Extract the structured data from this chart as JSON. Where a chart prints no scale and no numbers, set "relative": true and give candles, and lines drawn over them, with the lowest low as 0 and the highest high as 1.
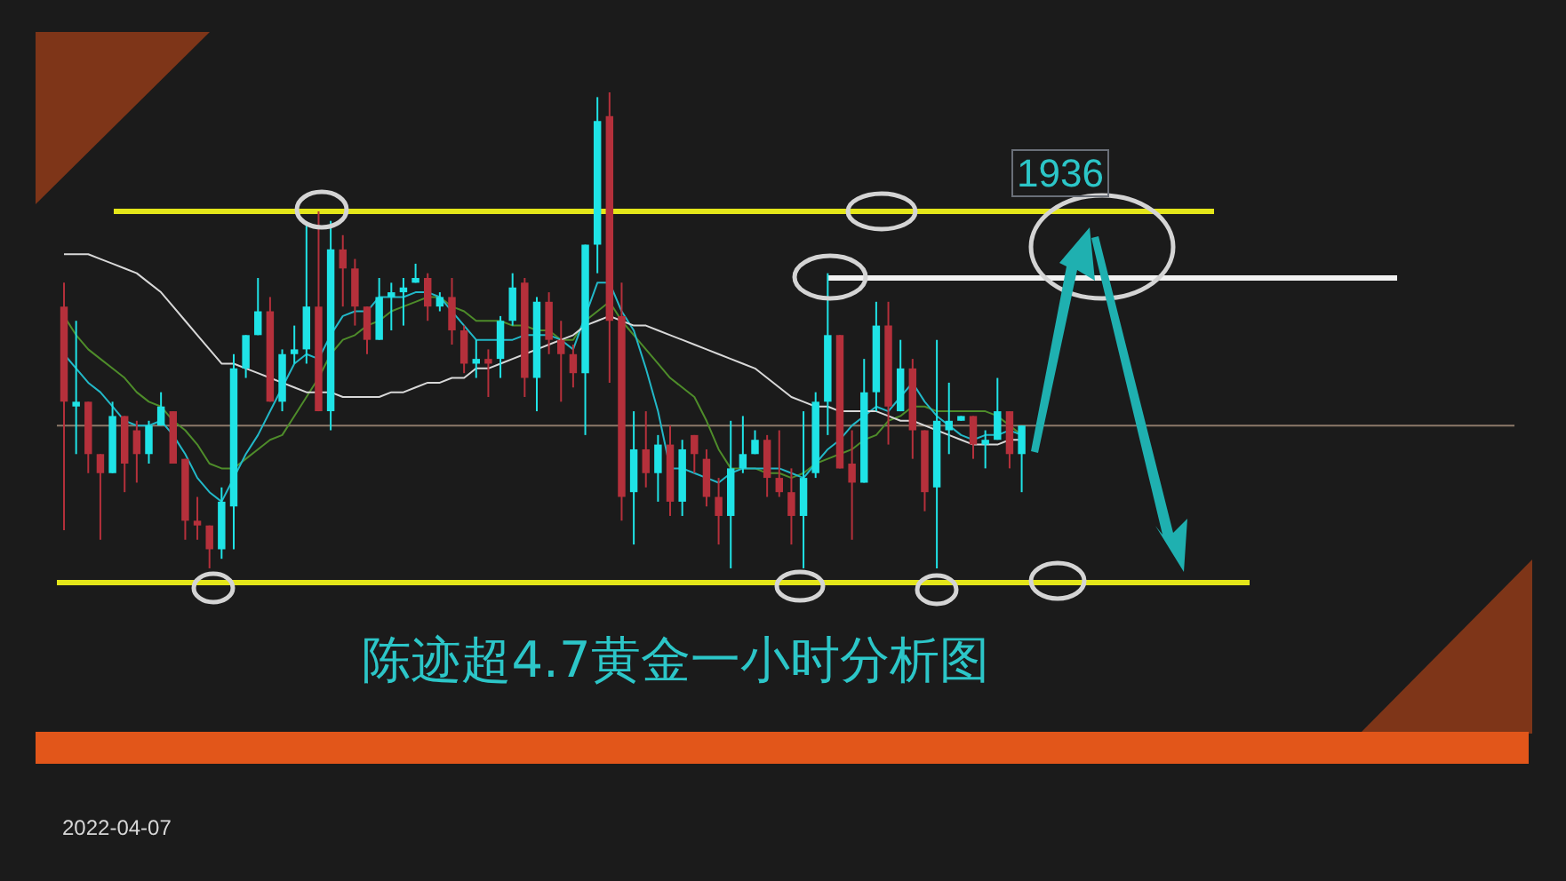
{
  "chart_data": {
    "type": "candlestick",
    "relative": true,
    "title": "陈迹超4.7黄金一小时分析图",
    "annotations": [
      "1936",
      "2022-04-07"
    ],
    "marker": "none",
    "categories": [
      null,
      null,
      null,
      null,
      null,
      null,
      null,
      null,
      null,
      null,
      null,
      null,
      null,
      null,
      null,
      null,
      null,
      null,
      null,
      null,
      null,
      null,
      null,
      null,
      null,
      null,
      null,
      null,
      null,
      null,
      null,
      null,
      null,
      null,
      null,
      null,
      null,
      null,
      null,
      null,
      null,
      null,
      null,
      null,
      null,
      null,
      null,
      null,
      null,
      null,
      null,
      null,
      null,
      null,
      null,
      null,
      null,
      null,
      null,
      null,
      null,
      null,
      null,
      null,
      null,
      null,
      null,
      null,
      null,
      null,
      null,
      null,
      null,
      null,
      null,
      null,
      null,
      null,
      null,
      null
    ],
    "ohlc": [
      [
        0.55,
        0.6,
        0.08,
        0.35
      ],
      [
        0.34,
        0.52,
        0.24,
        0.35
      ],
      [
        0.35,
        0.35,
        0.2,
        0.24
      ],
      [
        0.24,
        0.24,
        0.06,
        0.2
      ],
      [
        0.2,
        0.35,
        0.2,
        0.32
      ],
      [
        0.32,
        0.32,
        0.16,
        0.22
      ],
      [
        0.29,
        0.31,
        0.18,
        0.24
      ],
      [
        0.24,
        0.31,
        0.22,
        0.3
      ],
      [
        0.3,
        0.37,
        0.3,
        0.34
      ],
      [
        0.33,
        0.33,
        0.22,
        0.22
      ],
      [
        0.23,
        0.23,
        0.06,
        0.1
      ],
      [
        0.1,
        0.15,
        0.06,
        0.09
      ],
      [
        0.09,
        0.09,
        0,
        0.04
      ],
      [
        0.04,
        0.17,
        0.02,
        0.14
      ],
      [
        0.13,
        0.45,
        0.04,
        0.42
      ],
      [
        0.42,
        0.49,
        0.4,
        0.49
      ],
      [
        0.49,
        0.61,
        0.49,
        0.54
      ],
      [
        0.54,
        0.57,
        0.35,
        0.35
      ],
      [
        0.35,
        0.46,
        0.33,
        0.45
      ],
      [
        0.45,
        0.51,
        0.43,
        0.46
      ],
      [
        0.46,
        0.72,
        0.43,
        0.55
      ],
      [
        0.55,
        0.75,
        0.33,
        0.33
      ],
      [
        0.33,
        0.73,
        0.29,
        0.67
      ],
      [
        0.67,
        0.7,
        0.55,
        0.63
      ],
      [
        0.63,
        0.65,
        0.51,
        0.55
      ],
      [
        0.55,
        0.55,
        0.45,
        0.48
      ],
      [
        0.48,
        0.61,
        0.48,
        0.57
      ],
      [
        0.57,
        0.6,
        0.5,
        0.58
      ],
      [
        0.58,
        0.61,
        0.51,
        0.59
      ],
      [
        0.6,
        0.64,
        0.6,
        0.61
      ],
      [
        0.61,
        0.62,
        0.52,
        0.55
      ],
      [
        0.55,
        0.58,
        0.54,
        0.57
      ],
      [
        0.57,
        0.61,
        0.47,
        0.5
      ],
      [
        0.5,
        0.51,
        0.41,
        0.43
      ],
      [
        0.43,
        0.48,
        0.4,
        0.44
      ],
      [
        0.44,
        0.46,
        0.36,
        0.43
      ],
      [
        0.44,
        0.53,
        0.4,
        0.52
      ],
      [
        0.52,
        0.62,
        0.51,
        0.59
      ],
      [
        0.6,
        0.61,
        0.36,
        0.4
      ],
      [
        0.4,
        0.57,
        0.33,
        0.56
      ],
      [
        0.56,
        0.58,
        0.45,
        0.48
      ],
      [
        0.48,
        0.52,
        0.35,
        0.45
      ],
      [
        0.45,
        0.47,
        0.38,
        0.41
      ],
      [
        0.41,
        0.68,
        0.28,
        0.68
      ],
      [
        0.68,
        0.99,
        0.62,
        0.94
      ],
      [
        0.95,
        1,
        0.39,
        0.52
      ],
      [
        0.53,
        0.6,
        0.1,
        0.15
      ],
      [
        0.16,
        0.33,
        0.05,
        0.25
      ],
      [
        0.25,
        0.33,
        0.17,
        0.2
      ],
      [
        0.2,
        0.28,
        0.14,
        0.26
      ],
      [
        0.26,
        0.3,
        0.11,
        0.14
      ],
      [
        0.14,
        0.27,
        0.11,
        0.25
      ],
      [
        0.28,
        0.28,
        0.2,
        0.24
      ],
      [
        0.23,
        0.25,
        0.13,
        0.15
      ],
      [
        0.15,
        0.19,
        0.05,
        0.11
      ],
      [
        0.11,
        0.31,
        0,
        0.21
      ],
      [
        0.21,
        0.32,
        0.2,
        0.24
      ],
      [
        0.24,
        0.29,
        0.24,
        0.27
      ],
      [
        0.27,
        0.28,
        0.15,
        0.19
      ],
      [
        0.19,
        0.29,
        0.15,
        0.16
      ],
      [
        0.16,
        0.21,
        0.05,
        0.11
      ],
      [
        0.11,
        0.33,
        0,
        0.19
      ],
      [
        0.2,
        0.37,
        0.19,
        0.35
      ],
      [
        0.35,
        0.62,
        0.28,
        0.49
      ],
      [
        0.49,
        0.49,
        0.21,
        0.21
      ],
      [
        0.22,
        0.29,
        0.06,
        0.18
      ],
      [
        0.18,
        0.44,
        0.18,
        0.37
      ],
      [
        0.37,
        0.56,
        0.33,
        0.51
      ],
      [
        0.51,
        0.56,
        0.26,
        0.34
      ],
      [
        0.33,
        0.48,
        0.33,
        0.42
      ],
      [
        0.42,
        0.44,
        0.23,
        0.29
      ],
      [
        0.29,
        0.29,
        0.12,
        0.16
      ],
      [
        0.17,
        0.48,
        0,
        0.31
      ],
      [
        0.29,
        0.39,
        0.24,
        0.31
      ],
      [
        0.31,
        0.32,
        0.31,
        0.32
      ],
      [
        0.32,
        0.32,
        0.23,
        0.26
      ],
      [
        0.26,
        0.29,
        0.21,
        0.27
      ],
      [
        0.27,
        0.4,
        0.27,
        0.33
      ],
      [
        0.33,
        0.33,
        0.21,
        0.24
      ],
      [
        0.24,
        0.3,
        0.16,
        0.3
      ]
    ],
    "series": [
      {
        "type": "line",
        "color": "#d8d8d8",
        "values": [
          0.66,
          0.66,
          0.66,
          0.65,
          0.64,
          0.63,
          0.62,
          0.6,
          0.58,
          0.55,
          0.52,
          0.49,
          0.46,
          0.43,
          0.43,
          0.42,
          0.41,
          0.4,
          0.39,
          0.38,
          0.37,
          0.37,
          0.37,
          0.36,
          0.36,
          0.36,
          0.36,
          0.37,
          0.37,
          0.38,
          0.39,
          0.39,
          0.4,
          0.4,
          0.42,
          0.42,
          0.43,
          0.44,
          0.45,
          0.46,
          0.47,
          0.48,
          0.49,
          0.51,
          0.52,
          0.53,
          0.52,
          0.51,
          0.51,
          0.5,
          0.49,
          0.48,
          0.47,
          0.46,
          0.45,
          0.44,
          0.43,
          0.42,
          0.4,
          0.38,
          0.36,
          0.35,
          0.34,
          0.34,
          0.33,
          0.33,
          0.33,
          0.33,
          0.32,
          0.31,
          0.31,
          0.3,
          0.29,
          0.28,
          0.27,
          0.26,
          0.26,
          0.26,
          0.27,
          0.27
        ]
      },
      {
        "type": "line",
        "color": "#22b8c8",
        "values": [
          0.45,
          0.42,
          0.39,
          0.37,
          0.34,
          0.31,
          0.3,
          0.3,
          0.31,
          0.28,
          0.24,
          0.19,
          0.16,
          0.14,
          0.19,
          0.24,
          0.28,
          0.33,
          0.38,
          0.43,
          0.45,
          0.44,
          0.49,
          0.53,
          0.54,
          0.54,
          0.57,
          0.57,
          0.57,
          0.58,
          0.58,
          0.57,
          0.54,
          0.51,
          0.48,
          0.48,
          0.48,
          0.48,
          0.49,
          0.49,
          0.49,
          0.48,
          0.46,
          0.53,
          0.6,
          0.6,
          0.54,
          0.5,
          0.42,
          0.33,
          0.21,
          0.21,
          0.2,
          0.19,
          0.18,
          0.2,
          0.21,
          0.21,
          0.21,
          0.21,
          0.2,
          0.19,
          0.22,
          0.25,
          0.27,
          0.3,
          0.32,
          0.34,
          0.33,
          0.36,
          0.39,
          0.35,
          0.32,
          0.3,
          0.28,
          0.27,
          0.28,
          0.28,
          0.29,
          0.28
        ]
      },
      {
        "type": "line",
        "color": "#4e8c2a",
        "values": [
          0.53,
          0.49,
          0.46,
          0.44,
          0.42,
          0.4,
          0.37,
          0.35,
          0.34,
          0.31,
          0.29,
          0.26,
          0.22,
          0.21,
          0.21,
          0.23,
          0.25,
          0.27,
          0.28,
          0.32,
          0.36,
          0.4,
          0.45,
          0.48,
          0.49,
          0.51,
          0.52,
          0.54,
          0.55,
          0.56,
          0.57,
          0.57,
          0.55,
          0.54,
          0.52,
          0.52,
          0.52,
          0.51,
          0.51,
          0.5,
          0.5,
          0.48,
          0.48,
          0.52,
          0.54,
          0.56,
          0.52,
          0.49,
          0.46,
          0.43,
          0.4,
          0.38,
          0.36,
          0.31,
          0.25,
          0.21,
          0.21,
          0.21,
          0.2,
          0.2,
          0.19,
          0.2,
          0.22,
          0.23,
          0.24,
          0.25,
          0.27,
          0.28,
          0.31,
          0.32,
          0.34,
          0.34,
          0.33,
          0.33,
          0.33,
          0.33,
          0.33,
          0.32,
          0.3,
          0.28
        ]
      }
    ],
    "ref_lines": [
      {
        "axis": "y",
        "value": 0.75,
        "color": "#e4e619"
      },
      {
        "axis": "y",
        "value": 0.61,
        "color": "#f2f2f2"
      },
      {
        "axis": "y",
        "value": -0.03,
        "color": "#e4e619"
      },
      {
        "axis": "y",
        "value": 0.3,
        "color": "#8c7a6a"
      }
    ]
  }
}
